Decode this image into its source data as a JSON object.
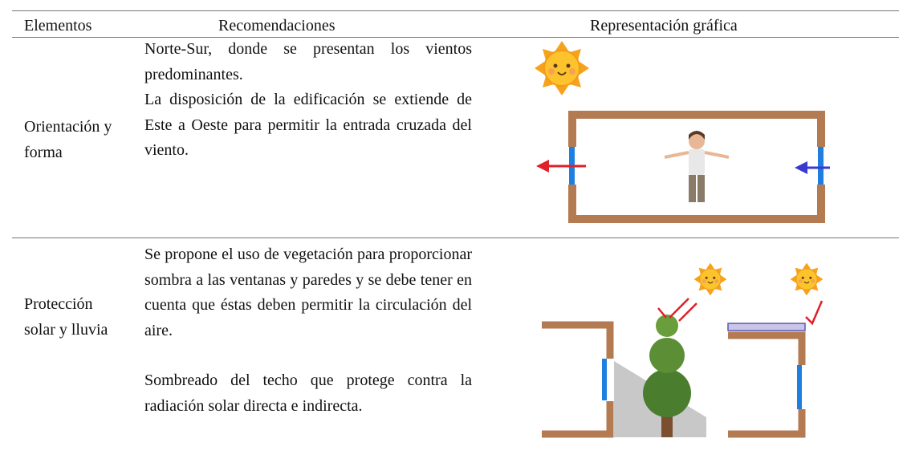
{
  "header": {
    "columns": [
      "Elementos",
      "Recomendaciones",
      "Representación gráfica"
    ]
  },
  "rows": [
    {
      "element": "Orientación y forma",
      "recommendations": [
        "Norte-Sur, donde se presentan los vientos predominantes.",
        "La disposición de la edificación se extiende de Este a Oeste para permitir la entrada cruzada del viento."
      ]
    },
    {
      "element": "Protección solar y lluvia",
      "recommendations": [
        "Se propone el uso de vegetación para proporcionar sombra a las ventanas y paredes y se debe tener en cuenta que éstas deben permitir la circulación del aire.",
        "Sombreado del techo que protege contra la radiación solar directa e indirecta."
      ]
    }
  ]
}
